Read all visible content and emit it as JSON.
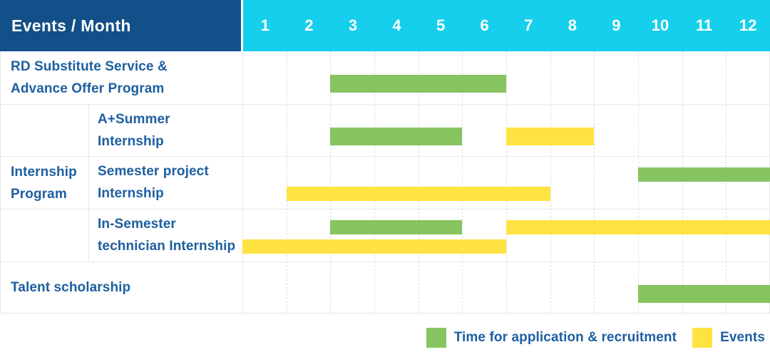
{
  "header": {
    "events_month_label": "Events / Month",
    "months": [
      "1",
      "2",
      "3",
      "4",
      "5",
      "6",
      "7",
      "8",
      "9",
      "10",
      "11",
      "12"
    ]
  },
  "colors": {
    "header_navy": "#134f88",
    "header_cyan": "#15cfec",
    "label_blue": "#1d5fa0",
    "application_green": "#85c45f",
    "events_yellow": "#ffe342"
  },
  "rows": {
    "rd": {
      "line1": "RD Substitute Service &",
      "line2": "Advance Offer Program"
    },
    "group": {
      "line1": "Internship",
      "line2": "Program"
    },
    "summer": {
      "line1": "A+Summer",
      "line2": "Internship"
    },
    "semester_project": {
      "line1": "Semester project",
      "line2": "Internship"
    },
    "in_semester": {
      "line1": "In-Semester",
      "line2": "technician Internship"
    },
    "talent": {
      "label": "Talent scholarship"
    }
  },
  "legend": {
    "application": "Time for application & recruitment",
    "events": "Events"
  },
  "chart_data": {
    "type": "bar",
    "variant": "gantt",
    "title": "Events / Month",
    "x_axis": {
      "label": "Month",
      "ticks": [
        "1",
        "2",
        "3",
        "4",
        "5",
        "6",
        "7",
        "8",
        "9",
        "10",
        "11",
        "12"
      ],
      "range": [
        1,
        12
      ]
    },
    "legend": [
      {
        "label": "Time for application & recruitment",
        "type": "application",
        "color": "#85c45f"
      },
      {
        "label": "Events",
        "type": "events",
        "color": "#ffe342"
      }
    ],
    "rows": [
      {
        "event": "RD Substitute Service & Advance Offer Program",
        "group": null,
        "bars": [
          {
            "type": "application",
            "months": [
              3,
              6
            ],
            "lane": "center"
          }
        ]
      },
      {
        "event": "A+Summer Internship",
        "group": "Internship Program",
        "bars": [
          {
            "type": "application",
            "months": [
              3,
              5
            ],
            "lane": "center"
          },
          {
            "type": "events",
            "months": [
              7,
              8
            ],
            "lane": "center"
          }
        ]
      },
      {
        "event": "Semester project Internship",
        "group": "Internship Program",
        "bars": [
          {
            "type": "application",
            "months": [
              10,
              12
            ],
            "lane": "top"
          },
          {
            "type": "events",
            "months": [
              2,
              7
            ],
            "lane": "bottom"
          }
        ]
      },
      {
        "event": "In-Semester technician Internship",
        "group": "Internship Program",
        "bars": [
          {
            "type": "application",
            "months": [
              3,
              5
            ],
            "lane": "top"
          },
          {
            "type": "events",
            "months": [
              7,
              12
            ],
            "lane": "top"
          },
          {
            "type": "events",
            "months": [
              1,
              6
            ],
            "lane": "bottom"
          }
        ]
      },
      {
        "event": "Talent scholarship",
        "group": null,
        "bars": [
          {
            "type": "application",
            "months": [
              10,
              12
            ],
            "lane": "center"
          }
        ]
      }
    ]
  }
}
